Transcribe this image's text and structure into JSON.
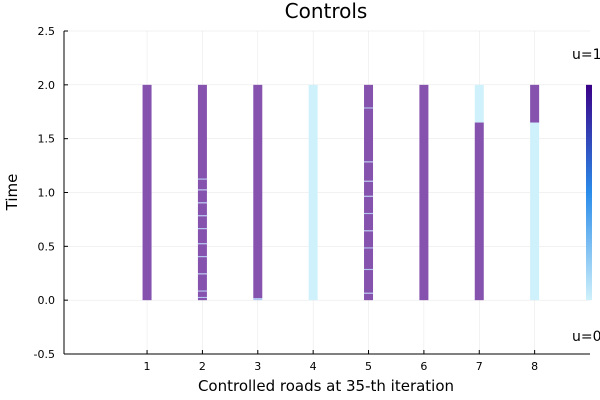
{
  "chart_data": {
    "type": "heatmap",
    "title": "Controls",
    "xlabel": "Controlled roads at 35-th iteration",
    "ylabel": "Time",
    "xlim": [
      -0.5,
      9.0
    ],
    "ylim": [
      -0.5,
      2.5
    ],
    "x_ticks": [
      1,
      2,
      3,
      4,
      5,
      6,
      7,
      8
    ],
    "y_ticks": [
      -0.5,
      0.0,
      0.5,
      1.0,
      1.5,
      2.0,
      2.5
    ],
    "y_tick_labels": [
      "-0.5",
      "0.0",
      "0.5",
      "1.0",
      "1.5",
      "2.0",
      "2.5"
    ],
    "grid": true,
    "colorbar_label_top": "u=1",
    "colorbar_label_bottom": "u=0",
    "colors": {
      "u1": "#8552ae",
      "u0": "#cff1fb",
      "transition": "#b3c6f0",
      "colorbar_high": "#3a0088",
      "colorbar_mid": "#2a8cea",
      "colorbar_low": "#cff1fb"
    },
    "series": [
      {
        "road": 1,
        "segments": [
          {
            "t0": 0.0,
            "t1": 2.0,
            "u": 1
          }
        ]
      },
      {
        "road": 2,
        "segments": [
          {
            "t0": 0.0,
            "t1": 0.02,
            "u": 1
          },
          {
            "t0": 0.02,
            "t1": 0.03,
            "u": 0.5
          },
          {
            "t0": 0.03,
            "t1": 0.08,
            "u": 1
          },
          {
            "t0": 0.08,
            "t1": 0.09,
            "u": 0.5
          },
          {
            "t0": 0.09,
            "t1": 0.24,
            "u": 1
          },
          {
            "t0": 0.24,
            "t1": 0.25,
            "u": 0.5
          },
          {
            "t0": 0.25,
            "t1": 0.4,
            "u": 1
          },
          {
            "t0": 0.4,
            "t1": 0.41,
            "u": 0.5
          },
          {
            "t0": 0.41,
            "t1": 0.52,
            "u": 1
          },
          {
            "t0": 0.52,
            "t1": 0.53,
            "u": 0.5
          },
          {
            "t0": 0.53,
            "t1": 0.66,
            "u": 1
          },
          {
            "t0": 0.66,
            "t1": 0.67,
            "u": 0.5
          },
          {
            "t0": 0.67,
            "t1": 0.78,
            "u": 1
          },
          {
            "t0": 0.78,
            "t1": 0.79,
            "u": 0.5
          },
          {
            "t0": 0.79,
            "t1": 0.9,
            "u": 1
          },
          {
            "t0": 0.9,
            "t1": 0.91,
            "u": 0.5
          },
          {
            "t0": 0.91,
            "t1": 1.02,
            "u": 1
          },
          {
            "t0": 1.02,
            "t1": 1.03,
            "u": 0.5
          },
          {
            "t0": 1.03,
            "t1": 1.12,
            "u": 1
          },
          {
            "t0": 1.12,
            "t1": 1.13,
            "u": 0.5
          },
          {
            "t0": 1.13,
            "t1": 2.0,
            "u": 1
          }
        ]
      },
      {
        "road": 3,
        "segments": [
          {
            "t0": 0.0,
            "t1": 0.02,
            "u": 0.5
          },
          {
            "t0": 0.02,
            "t1": 2.0,
            "u": 1
          }
        ]
      },
      {
        "road": 4,
        "segments": [
          {
            "t0": 0.0,
            "t1": 2.0,
            "u": 0
          }
        ]
      },
      {
        "road": 5,
        "segments": [
          {
            "t0": 0.0,
            "t1": 0.06,
            "u": 1
          },
          {
            "t0": 0.06,
            "t1": 0.07,
            "u": 0.5
          },
          {
            "t0": 0.07,
            "t1": 0.28,
            "u": 1
          },
          {
            "t0": 0.28,
            "t1": 0.29,
            "u": 0.5
          },
          {
            "t0": 0.29,
            "t1": 0.48,
            "u": 1
          },
          {
            "t0": 0.48,
            "t1": 0.49,
            "u": 0.5
          },
          {
            "t0": 0.49,
            "t1": 0.64,
            "u": 1
          },
          {
            "t0": 0.64,
            "t1": 0.65,
            "u": 0.5
          },
          {
            "t0": 0.65,
            "t1": 0.8,
            "u": 1
          },
          {
            "t0": 0.8,
            "t1": 0.81,
            "u": 0.5
          },
          {
            "t0": 0.81,
            "t1": 0.96,
            "u": 1
          },
          {
            "t0": 0.96,
            "t1": 0.97,
            "u": 0.5
          },
          {
            "t0": 0.97,
            "t1": 1.1,
            "u": 1
          },
          {
            "t0": 1.1,
            "t1": 1.11,
            "u": 0.5
          },
          {
            "t0": 1.11,
            "t1": 1.28,
            "u": 1
          },
          {
            "t0": 1.28,
            "t1": 1.29,
            "u": 0.5
          },
          {
            "t0": 1.29,
            "t1": 1.78,
            "u": 1
          },
          {
            "t0": 1.78,
            "t1": 1.79,
            "u": 0.5
          },
          {
            "t0": 1.79,
            "t1": 2.0,
            "u": 1
          }
        ]
      },
      {
        "road": 6,
        "segments": [
          {
            "t0": 0.0,
            "t1": 2.0,
            "u": 1
          }
        ]
      },
      {
        "road": 7,
        "segments": [
          {
            "t0": 0.0,
            "t1": 1.65,
            "u": 1
          },
          {
            "t0": 1.65,
            "t1": 2.0,
            "u": 0
          }
        ]
      },
      {
        "road": 8,
        "segments": [
          {
            "t0": 0.0,
            "t1": 1.65,
            "u": 0
          },
          {
            "t0": 1.65,
            "t1": 2.0,
            "u": 1
          }
        ]
      }
    ]
  }
}
